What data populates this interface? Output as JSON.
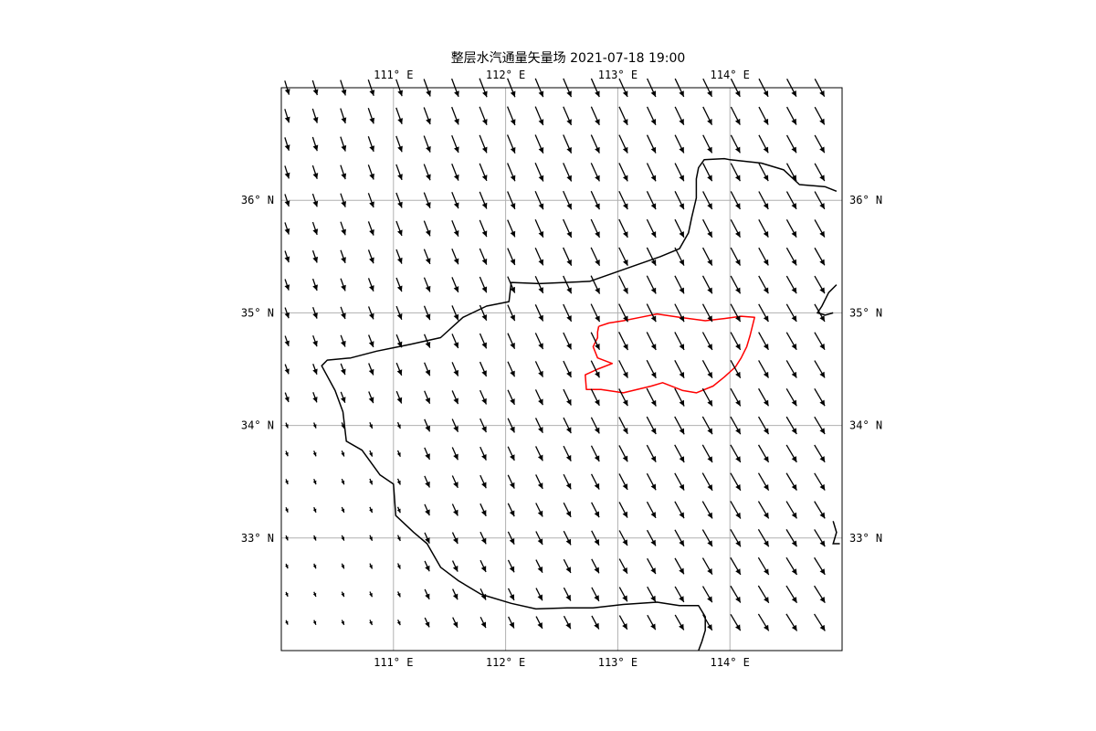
{
  "title": "整层水汽通量矢量场 2021-07-18 19:00",
  "extent": {
    "lon_min": 110.0,
    "lon_max": 115.0,
    "lat_min": 32.0,
    "lat_max": 37.0
  },
  "lon_ticks": [
    {
      "value": 111,
      "label": "111° E"
    },
    {
      "value": 112,
      "label": "112° E"
    },
    {
      "value": 113,
      "label": "113° E"
    },
    {
      "value": 114,
      "label": "114° E"
    }
  ],
  "lat_ticks": [
    {
      "value": 33,
      "label": "33° N"
    },
    {
      "value": 34,
      "label": "34° N"
    },
    {
      "value": 35,
      "label": "35° N"
    },
    {
      "value": 36,
      "label": "36° N"
    }
  ],
  "colors": {
    "province_border": "#000000",
    "region_border": "#ff0000",
    "gridline": "#b0b0b0",
    "vector": "#000000"
  },
  "chart_data": {
    "type": "vector_field",
    "title": "整层水汽通量矢量场 2021-07-18 19:00",
    "x_range": [
      110.0,
      115.0
    ],
    "y_range": [
      32.0,
      37.0
    ],
    "grid": true,
    "x": [
      110.05,
      110.3,
      110.55,
      110.8,
      111.05,
      111.3,
      111.55,
      111.8,
      112.05,
      112.3,
      112.55,
      112.8,
      113.05,
      113.3,
      113.55,
      113.8,
      114.05,
      114.3,
      114.55,
      114.8
    ],
    "y": [
      37.0,
      36.75,
      36.5,
      36.25,
      36.0,
      35.75,
      35.5,
      35.25,
      35.0,
      34.75,
      34.5,
      34.25,
      34.0,
      33.75,
      33.5,
      33.25,
      33.0,
      32.75,
      32.5,
      32.25
    ],
    "vectors": "u,v per grid cell (relative magnitude, east/north) computed in rendering script",
    "province_boundary": [
      [
        114.95,
        36.08
      ],
      [
        114.85,
        36.12
      ],
      [
        114.62,
        36.14
      ],
      [
        114.48,
        36.27
      ],
      [
        114.28,
        36.33
      ],
      [
        114.0,
        36.36
      ],
      [
        113.95,
        36.37
      ],
      [
        113.77,
        36.36
      ],
      [
        113.72,
        36.29
      ],
      [
        113.7,
        36.19
      ],
      [
        113.7,
        36.02
      ],
      [
        113.66,
        35.85
      ],
      [
        113.63,
        35.71
      ],
      [
        113.55,
        35.57
      ],
      [
        113.38,
        35.5
      ],
      [
        113.15,
        35.42
      ],
      [
        112.95,
        35.35
      ],
      [
        112.75,
        35.28
      ],
      [
        112.3,
        35.26
      ],
      [
        112.05,
        35.27
      ],
      [
        112.03,
        35.1
      ],
      [
        111.83,
        35.06
      ],
      [
        111.62,
        34.96
      ],
      [
        111.42,
        34.78
      ],
      [
        111.15,
        34.72
      ],
      [
        110.85,
        34.66
      ],
      [
        110.62,
        34.6
      ],
      [
        110.41,
        34.58
      ],
      [
        110.36,
        34.53
      ],
      [
        110.48,
        34.31
      ],
      [
        110.55,
        34.12
      ],
      [
        110.58,
        33.86
      ],
      [
        110.72,
        33.78
      ],
      [
        110.88,
        33.56
      ],
      [
        111.0,
        33.48
      ],
      [
        111.02,
        33.2
      ],
      [
        111.18,
        33.05
      ],
      [
        111.3,
        32.95
      ],
      [
        111.42,
        32.74
      ],
      [
        111.58,
        32.62
      ],
      [
        111.78,
        32.5
      ],
      [
        112.05,
        32.42
      ],
      [
        112.27,
        32.37
      ],
      [
        112.55,
        32.38
      ],
      [
        112.78,
        32.38
      ],
      [
        113.05,
        32.41
      ],
      [
        113.35,
        32.43
      ],
      [
        113.55,
        32.4
      ],
      [
        113.72,
        32.4
      ],
      [
        113.78,
        32.3
      ],
      [
        113.78,
        32.18
      ],
      [
        113.75,
        32.08
      ],
      [
        113.72,
        32.0
      ]
    ],
    "east_boundary": [
      [
        114.95,
        35.25
      ],
      [
        114.88,
        35.18
      ],
      [
        114.82,
        35.06
      ],
      [
        114.78,
        35.0
      ],
      [
        114.85,
        34.98
      ],
      [
        114.92,
        35.0
      ]
    ],
    "southeast_boundary": [
      [
        114.92,
        33.15
      ],
      [
        114.95,
        33.05
      ],
      [
        114.92,
        32.95
      ],
      [
        114.98,
        32.95
      ]
    ],
    "region_boundary": [
      [
        112.83,
        34.88
      ],
      [
        112.92,
        34.91
      ],
      [
        113.05,
        34.93
      ],
      [
        113.2,
        34.96
      ],
      [
        113.35,
        34.99
      ],
      [
        113.55,
        34.96
      ],
      [
        113.78,
        34.93
      ],
      [
        113.95,
        34.95
      ],
      [
        114.1,
        34.97
      ],
      [
        114.22,
        34.96
      ],
      [
        114.18,
        34.8
      ],
      [
        114.15,
        34.7
      ],
      [
        114.1,
        34.6
      ],
      [
        114.05,
        34.52
      ],
      [
        113.95,
        34.43
      ],
      [
        113.85,
        34.35
      ],
      [
        113.7,
        34.29
      ],
      [
        113.58,
        34.31
      ],
      [
        113.4,
        34.38
      ],
      [
        113.3,
        34.35
      ],
      [
        113.05,
        34.29
      ],
      [
        112.85,
        34.32
      ],
      [
        112.72,
        34.32
      ],
      [
        112.71,
        34.45
      ],
      [
        112.82,
        34.5
      ],
      [
        112.95,
        34.55
      ],
      [
        112.82,
        34.6
      ],
      [
        112.78,
        34.7
      ],
      [
        112.82,
        34.78
      ],
      [
        112.82,
        34.83
      ],
      [
        112.83,
        34.88
      ]
    ]
  }
}
